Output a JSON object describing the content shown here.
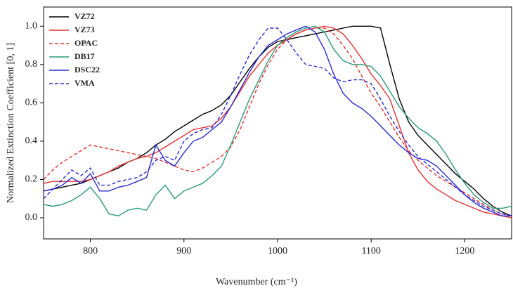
{
  "chart_data": {
    "type": "line",
    "xlabel": "Wavenumber (cm⁻¹)",
    "ylabel": "Normalized Extinction Coefficient  [0, 1]",
    "x": [
      750,
      760,
      770,
      780,
      790,
      800,
      810,
      820,
      830,
      840,
      850,
      860,
      870,
      880,
      890,
      900,
      910,
      920,
      930,
      940,
      950,
      960,
      970,
      980,
      990,
      1000,
      1010,
      1020,
      1030,
      1040,
      1050,
      1060,
      1070,
      1080,
      1090,
      1100,
      1110,
      1120,
      1130,
      1140,
      1150,
      1160,
      1170,
      1180,
      1190,
      1200,
      1210,
      1220,
      1230,
      1240,
      1250
    ],
    "xlim": [
      750,
      1250
    ],
    "xticks": [
      800,
      900,
      1000,
      1100,
      1200
    ],
    "ylim": [
      -0.11,
      1.1
    ],
    "yticks": [
      {
        "value": 0,
        "label": "0.0"
      },
      0.2,
      0.4,
      0.6,
      0.8,
      {
        "value": 1,
        "label": "1.0"
      }
    ],
    "legend": "upper left",
    "series": [
      {
        "name": "VZ72",
        "color": "#000000",
        "dashed": false,
        "values": [
          0.14,
          0.15,
          0.16,
          0.17,
          0.18,
          0.2,
          0.22,
          0.24,
          0.26,
          0.29,
          0.31,
          0.34,
          0.38,
          0.41,
          0.45,
          0.48,
          0.51,
          0.54,
          0.56,
          0.59,
          0.64,
          0.71,
          0.78,
          0.84,
          0.89,
          0.92,
          0.93,
          0.94,
          0.95,
          0.96,
          0.97,
          0.98,
          0.99,
          1.0,
          1.0,
          1.0,
          0.99,
          0.8,
          0.62,
          0.5,
          0.43,
          0.38,
          0.33,
          0.28,
          0.23,
          0.19,
          0.15,
          0.1,
          0.06,
          0.03,
          0.01
        ]
      },
      {
        "name": "VZ73",
        "color": "#e03030",
        "dashed": false,
        "values": [
          0.18,
          0.19,
          0.19,
          0.19,
          0.19,
          0.2,
          0.22,
          0.24,
          0.27,
          0.29,
          0.31,
          0.32,
          0.34,
          0.37,
          0.4,
          0.43,
          0.46,
          0.47,
          0.48,
          0.52,
          0.58,
          0.66,
          0.74,
          0.8,
          0.86,
          0.9,
          0.93,
          0.96,
          0.98,
          0.99,
          1.0,
          0.99,
          0.96,
          0.9,
          0.83,
          0.75,
          0.69,
          0.62,
          0.48,
          0.34,
          0.25,
          0.19,
          0.15,
          0.12,
          0.09,
          0.07,
          0.05,
          0.03,
          0.02,
          0.01,
          0.0
        ]
      },
      {
        "name": "OPAC",
        "color": "#e03030",
        "dashed": true,
        "values": [
          0.2,
          0.25,
          0.29,
          0.32,
          0.35,
          0.38,
          0.37,
          0.36,
          0.35,
          0.34,
          0.33,
          0.32,
          0.31,
          0.29,
          0.27,
          0.25,
          0.24,
          0.26,
          0.29,
          0.32,
          0.37,
          0.46,
          0.58,
          0.7,
          0.8,
          0.88,
          0.93,
          0.96,
          0.98,
          0.99,
          0.99,
          0.96,
          0.9,
          0.83,
          0.74,
          0.65,
          0.58,
          0.5,
          0.42,
          0.35,
          0.3,
          0.26,
          0.22,
          0.19,
          0.16,
          0.13,
          0.1,
          0.07,
          0.04,
          0.02,
          0.01
        ]
      },
      {
        "name": "DB17",
        "color": "#2a9a7a",
        "dashed": false,
        "values": [
          0.07,
          0.06,
          0.07,
          0.09,
          0.12,
          0.16,
          0.1,
          0.02,
          0.01,
          0.04,
          0.05,
          0.04,
          0.12,
          0.17,
          0.1,
          0.14,
          0.16,
          0.18,
          0.22,
          0.27,
          0.38,
          0.5,
          0.62,
          0.72,
          0.82,
          0.9,
          0.94,
          0.97,
          0.99,
          1.0,
          0.97,
          0.88,
          0.82,
          0.8,
          0.8,
          0.79,
          0.74,
          0.66,
          0.58,
          0.52,
          0.47,
          0.44,
          0.4,
          0.33,
          0.25,
          0.18,
          0.12,
          0.08,
          0.05,
          0.05,
          0.06
        ]
      },
      {
        "name": "DSC22",
        "color": "#2a2ad0",
        "dashed": false,
        "values": [
          0.14,
          0.15,
          0.17,
          0.21,
          0.18,
          0.23,
          0.14,
          0.14,
          0.16,
          0.17,
          0.19,
          0.21,
          0.38,
          0.3,
          0.27,
          0.34,
          0.4,
          0.42,
          0.46,
          0.5,
          0.58,
          0.67,
          0.76,
          0.84,
          0.9,
          0.93,
          0.96,
          0.98,
          1.0,
          0.97,
          0.88,
          0.75,
          0.65,
          0.6,
          0.57,
          0.53,
          0.48,
          0.43,
          0.38,
          0.34,
          0.31,
          0.3,
          0.27,
          0.22,
          0.17,
          0.12,
          0.08,
          0.05,
          0.03,
          0.01,
          0.01
        ]
      },
      {
        "name": "VMA",
        "color": "#2a2ad0",
        "dashed": true,
        "values": [
          0.1,
          0.15,
          0.2,
          0.25,
          0.22,
          0.26,
          0.17,
          0.17,
          0.19,
          0.2,
          0.21,
          0.24,
          0.3,
          0.32,
          0.3,
          0.4,
          0.44,
          0.46,
          0.47,
          0.54,
          0.64,
          0.75,
          0.85,
          0.93,
          0.99,
          0.99,
          0.93,
          0.86,
          0.8,
          0.79,
          0.78,
          0.73,
          0.71,
          0.72,
          0.72,
          0.7,
          0.62,
          0.53,
          0.45,
          0.38,
          0.32,
          0.28,
          0.24,
          0.2,
          0.16,
          0.12,
          0.09,
          0.06,
          0.04,
          0.02,
          0.01
        ]
      }
    ]
  }
}
